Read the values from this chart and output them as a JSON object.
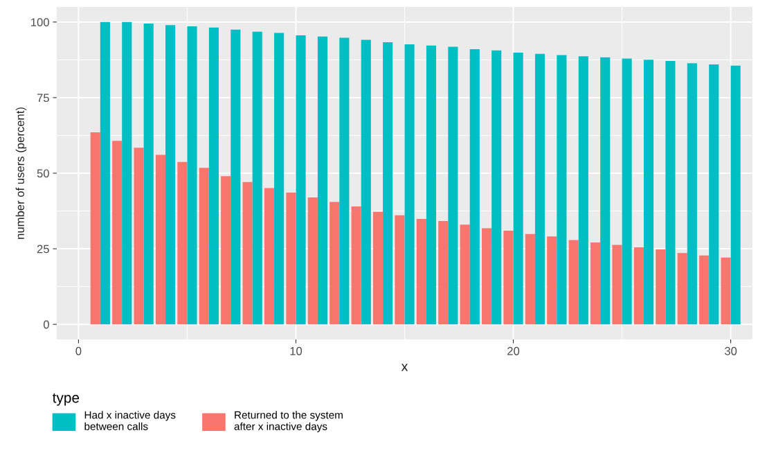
{
  "chart_data": {
    "type": "bar",
    "xlabel": "x",
    "ylabel": "number of users (percent)",
    "legend_title": "type",
    "x": [
      1,
      2,
      3,
      4,
      5,
      6,
      7,
      8,
      9,
      10,
      11,
      12,
      13,
      14,
      15,
      16,
      17,
      18,
      19,
      20,
      21,
      22,
      23,
      24,
      25,
      26,
      27,
      28,
      29,
      30
    ],
    "series": [
      {
        "name": "Returned to the system\nafter x inactive days",
        "color": "#f8766d",
        "values": [
          63.5,
          60.7,
          58.4,
          56.1,
          53.7,
          51.8,
          49.0,
          47.1,
          45.1,
          43.6,
          42.0,
          40.5,
          39.0,
          37.2,
          36.1,
          34.9,
          34.2,
          33.0,
          31.8,
          31.0,
          29.9,
          29.1,
          27.9,
          27.1,
          26.3,
          25.5,
          24.8,
          23.6,
          22.8,
          22.1
        ]
      },
      {
        "name": "Had x inactive days\nbetween calls",
        "color": "#00bfc4",
        "values": [
          100,
          100,
          99.5,
          99,
          98.6,
          98.2,
          97.5,
          96.8,
          96.4,
          95.6,
          95.2,
          94.8,
          94.1,
          93.3,
          92.6,
          92.2,
          91.8,
          91.0,
          90.6,
          89.9,
          89.5,
          89.1,
          88.7,
          88.3,
          87.9,
          87.5,
          87.1,
          86.4,
          86.0,
          85.6
        ]
      }
    ],
    "xlim": [
      -1,
      31
    ],
    "xticks": [
      0,
      10,
      20,
      30
    ],
    "ylim": [
      -5,
      105
    ],
    "yticks": [
      0,
      25,
      50,
      75,
      100
    ],
    "grid": true,
    "legend": "bottom"
  }
}
